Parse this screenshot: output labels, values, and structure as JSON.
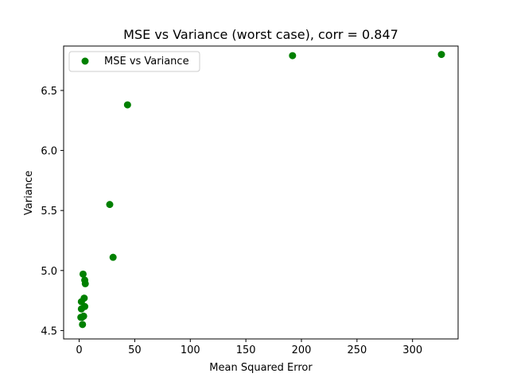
{
  "chart_data": {
    "type": "scatter",
    "title": "MSE vs Variance (worst case), corr = 0.847",
    "xlabel": "Mean Squared Error",
    "ylabel": "Variance",
    "xlim": [
      -14,
      341
    ],
    "ylim": [
      4.43,
      6.87
    ],
    "xticks": [
      0,
      50,
      100,
      150,
      200,
      250,
      300
    ],
    "yticks": [
      4.5,
      5.0,
      5.5,
      6.0,
      6.5
    ],
    "ytick_labels": [
      "4.5",
      "5.0",
      "5.5",
      "6.0",
      "6.5"
    ],
    "grid": false,
    "legend": {
      "position": "top-left",
      "entries": [
        "MSE vs Variance"
      ]
    },
    "series": [
      {
        "name": "MSE vs Variance",
        "color": "#008000",
        "points": [
          {
            "x": 326.0,
            "y": 6.8
          },
          {
            "x": 192.0,
            "y": 6.79
          },
          {
            "x": 43.5,
            "y": 6.38
          },
          {
            "x": 27.5,
            "y": 5.55
          },
          {
            "x": 30.5,
            "y": 5.11
          },
          {
            "x": 3.5,
            "y": 4.97
          },
          {
            "x": 5.0,
            "y": 4.92
          },
          {
            "x": 5.5,
            "y": 4.89
          },
          {
            "x": 4.5,
            "y": 4.77
          },
          {
            "x": 2.0,
            "y": 4.74
          },
          {
            "x": 5.0,
            "y": 4.7
          },
          {
            "x": 2.0,
            "y": 4.68
          },
          {
            "x": 4.0,
            "y": 4.62
          },
          {
            "x": 2.5,
            "y": 4.61
          },
          {
            "x": 1.5,
            "y": 4.61
          },
          {
            "x": 3.0,
            "y": 4.55
          }
        ]
      }
    ]
  }
}
